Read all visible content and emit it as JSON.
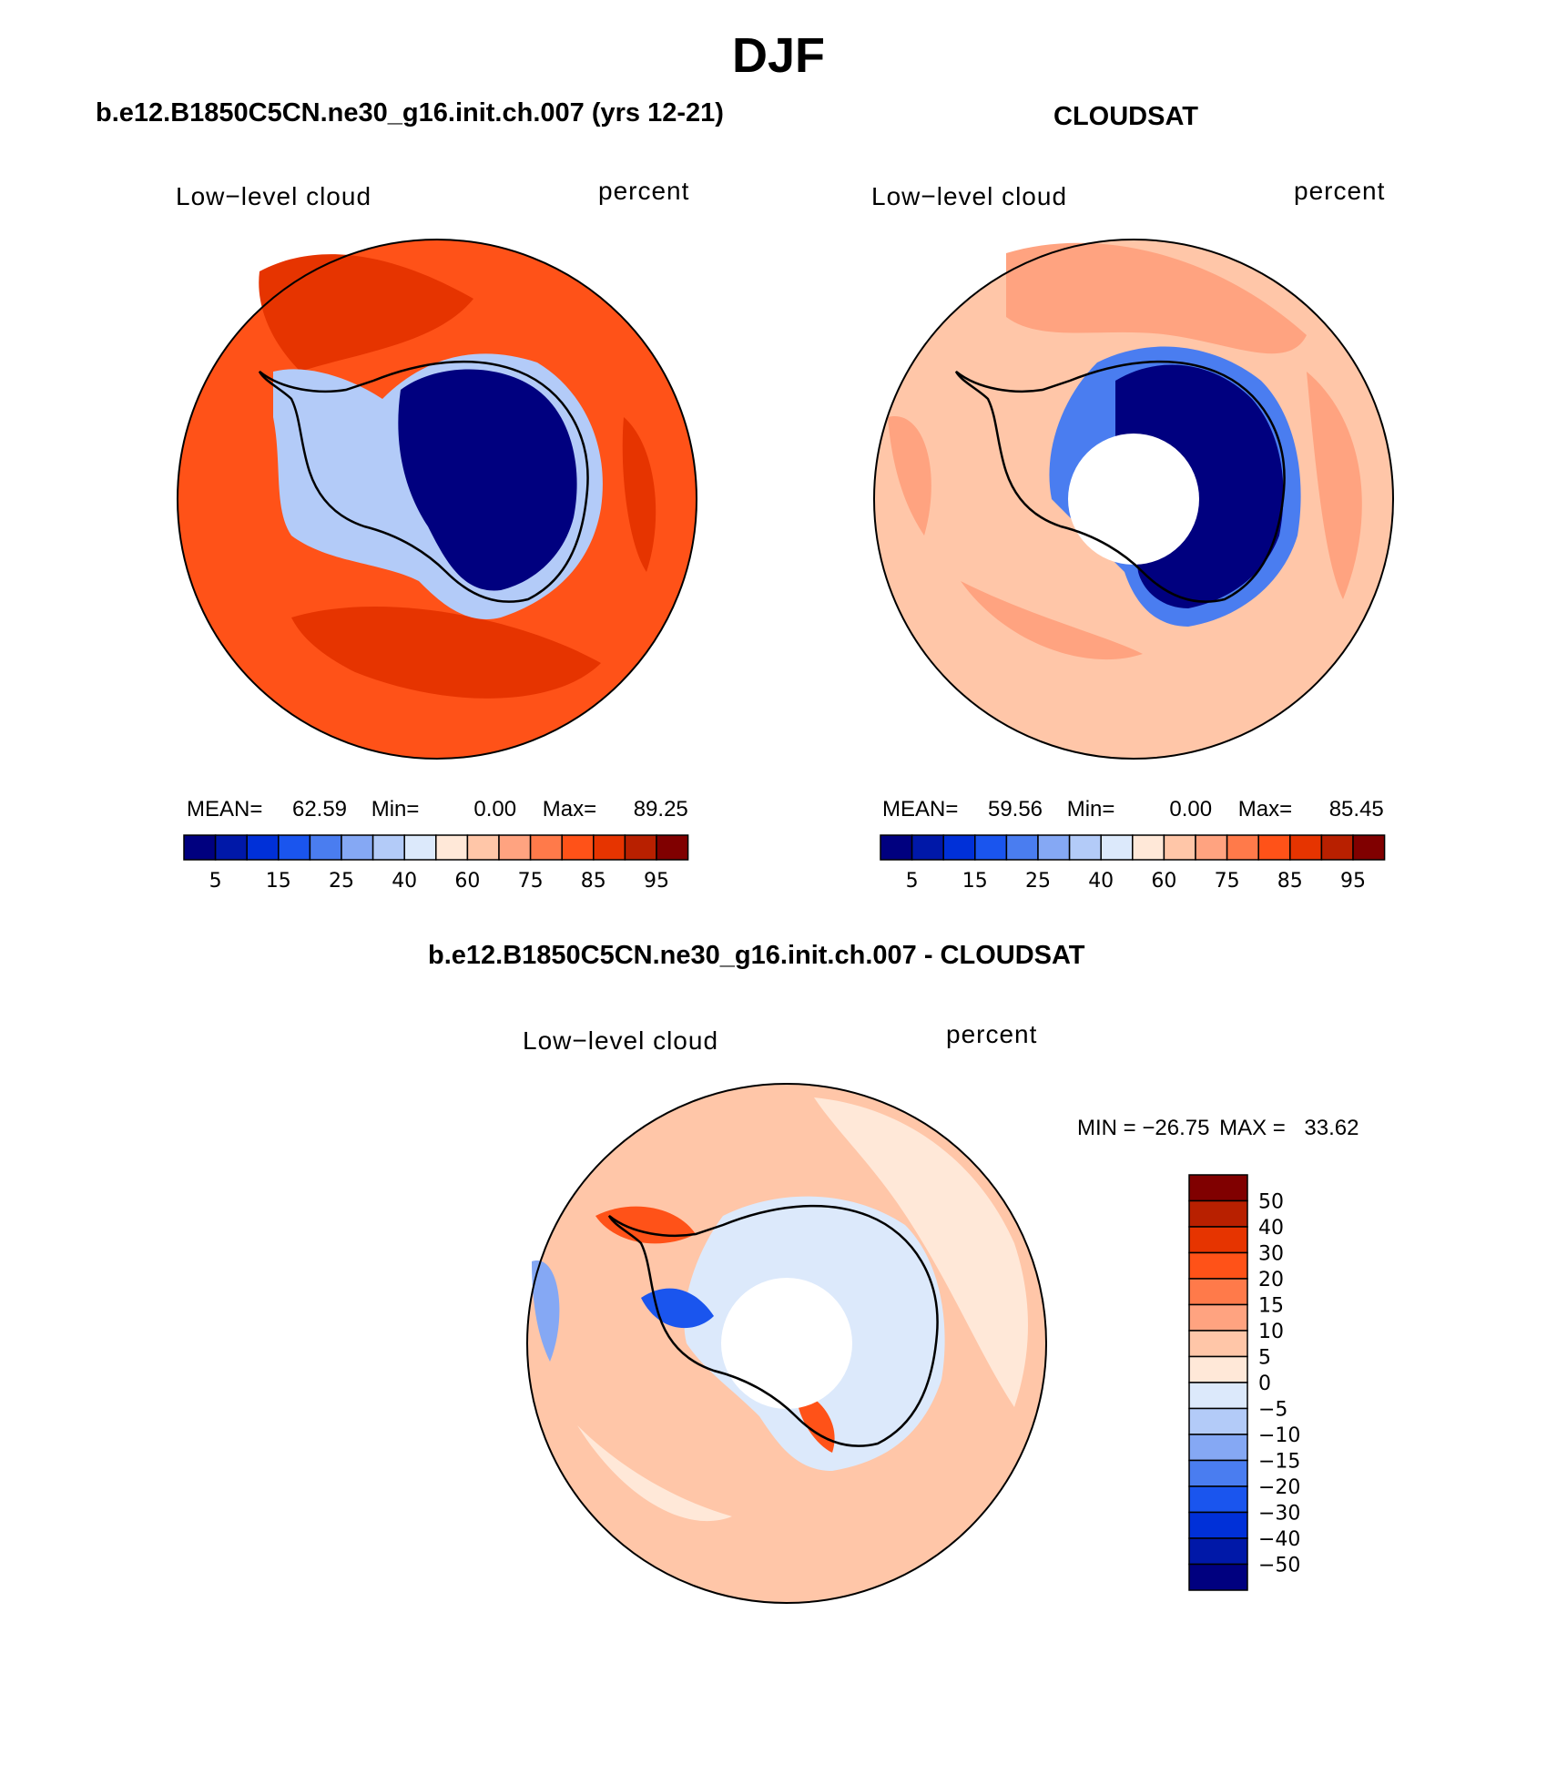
{
  "figure": {
    "title": "DJF"
  },
  "palettes": {
    "percent": [
      "#00007f",
      "#0018a8",
      "#0030d8",
      "#1a55ee",
      "#4a7df0",
      "#85a8f4",
      "#b3cbf8",
      "#dce9fb",
      "#ffe8d8",
      "#ffc6a8",
      "#ffa380",
      "#ff7a4a",
      "#ff5218",
      "#e63400",
      "#b82000",
      "#800000"
    ],
    "diff": [
      "#00007f",
      "#0018a8",
      "#0030d8",
      "#1a55ee",
      "#4a7df0",
      "#85a8f4",
      "#b3cbf8",
      "#dce9fb",
      "#ffe8d8",
      "#ffc6a8",
      "#ffa380",
      "#ff7a4a",
      "#ff5218",
      "#e63400",
      "#b82000",
      "#800000"
    ]
  },
  "panels": [
    {
      "title": "b.e12.B1850C5CN.ne30_g16.init.ch.007 (yrs 12-21)",
      "variable": "Low−level cloud",
      "units": "percent",
      "mean_label": "MEAN=",
      "mean": "62.59",
      "min_label": "Min=",
      "min": "0.00",
      "max_label": "Max=",
      "max": "89.25",
      "colorbar_labels": [
        "5",
        "15",
        "25",
        "40",
        "60",
        "75",
        "85",
        "95"
      ],
      "field": {
        "ocean": "#ff5218",
        "band": "#e63400",
        "continent": "#00007f",
        "ring": "#b3cbf8",
        "missing_pole": false
      }
    },
    {
      "title": "CLOUDSAT",
      "variable": "Low−level cloud",
      "units": "percent",
      "mean_label": "MEAN=",
      "mean": "59.56",
      "min_label": "Min=",
      "min": "0.00",
      "max_label": "Max=",
      "max": "85.45",
      "colorbar_labels": [
        "5",
        "15",
        "25",
        "40",
        "60",
        "75",
        "85",
        "95"
      ],
      "field": {
        "ocean": "#ffc6a8",
        "band": "#ffa380",
        "continent": "#00007f",
        "ring": "#4a7df0",
        "missing_pole": true
      }
    },
    {
      "title": "b.e12.B1850C5CN.ne30_g16.init.ch.007 - CLOUDSAT",
      "variable": "Low−level cloud",
      "units": "percent",
      "min_label": "MIN =",
      "min": "−26.75",
      "max_label": "MAX =",
      "max": "33.62",
      "colorbar_labels": [
        "50",
        "40",
        "30",
        "20",
        "15",
        "10",
        "5",
        "0",
        "−5",
        "−10",
        "−15",
        "−20",
        "−30",
        "−40",
        "−50"
      ],
      "field": {
        "ocean": "#ffc6a8",
        "band": "#ffe8d8",
        "continent": "#dce9fb",
        "ring": "#85a8f4",
        "missing_pole": true
      }
    }
  ]
}
